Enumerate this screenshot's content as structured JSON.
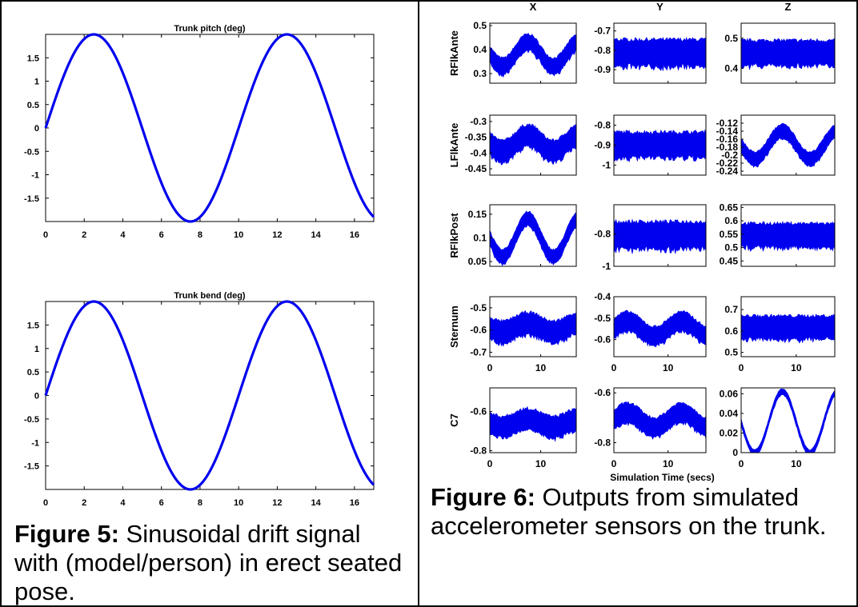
{
  "figure5": {
    "label": "Figure 5:",
    "text": " Sinusoidal drift signal with (model/person) in erect seated pose."
  },
  "figure6": {
    "label": "Figure 6:",
    "text": " Outputs from simulated accelerometer sensors on the trunk."
  },
  "colors": {
    "series": "#0000ee",
    "axis": "#000000"
  },
  "chart_data": [
    {
      "type": "line",
      "title": "Trunk pitch (deg)",
      "xlim": [
        0,
        17
      ],
      "ylim": [
        -2,
        2
      ],
      "xticks": [
        0,
        2,
        4,
        6,
        8,
        10,
        12,
        14,
        16
      ],
      "yticks": [
        -1.5,
        -1,
        -0.5,
        0,
        0.5,
        1,
        1.5
      ],
      "yticklabels": [
        "-1.5",
        "-1",
        "-0.5",
        "0",
        "0.5",
        "1",
        "1.5"
      ],
      "series": [
        {
          "amplitude": 2,
          "period": 10,
          "phase_deg": 0,
          "x_range": [
            0,
            17
          ]
        }
      ]
    },
    {
      "type": "line",
      "title": "Trunk bend (deg)",
      "xlim": [
        0,
        17
      ],
      "ylim": [
        -2,
        2
      ],
      "xticks": [
        0,
        2,
        4,
        6,
        8,
        10,
        12,
        14,
        16
      ],
      "yticks": [
        -1.5,
        -1,
        -0.5,
        0,
        0.5,
        1,
        1.5
      ],
      "yticklabels": [
        "-1.5",
        "-1",
        "-0.5",
        "0",
        "0.5",
        "1",
        "1.5"
      ],
      "series": [
        {
          "amplitude": 2,
          "period": 10,
          "phase_deg": 0,
          "x_range": [
            0,
            17
          ]
        }
      ]
    },
    {
      "type": "line",
      "grid_title_columns": [
        "X",
        "Y",
        "Z"
      ],
      "row_labels": [
        "RFlkAnte",
        "LFlkAnte",
        "RFlkPost",
        "Sternum",
        "C7"
      ],
      "xlabel": "Simulation Time (secs)",
      "xlim": [
        0,
        17
      ],
      "xticks": [
        0,
        10
      ],
      "subplots": [
        {
          "row": 0,
          "col": 0,
          "ylim": [
            0.26,
            0.51
          ],
          "yticks": [
            0.3,
            0.4,
            0.5
          ],
          "yticklabels": [
            "0.3",
            "0.4",
            "0.5"
          ],
          "center": 0.38,
          "amp": 0.05,
          "phase_deg": 180,
          "band": 0.07
        },
        {
          "row": 0,
          "col": 1,
          "ylim": [
            -0.97,
            -0.66
          ],
          "yticks": [
            -0.9,
            -0.8,
            -0.7
          ],
          "yticklabels": [
            "-0.9",
            "-0.8",
            "-0.7"
          ],
          "center": -0.815,
          "amp": 0.0,
          "phase_deg": 0,
          "band": 0.14
        },
        {
          "row": 0,
          "col": 2,
          "ylim": [
            0.35,
            0.55
          ],
          "yticks": [
            0.4,
            0.5
          ],
          "yticklabels": [
            "0.4",
            "0.5"
          ],
          "center": 0.45,
          "amp": 0.0,
          "phase_deg": 0,
          "band": 0.085
        },
        {
          "row": 1,
          "col": 0,
          "ylim": [
            -0.47,
            -0.28
          ],
          "yticks": [
            -0.45,
            -0.4,
            -0.35,
            -0.3
          ],
          "yticklabels": [
            "-0.45",
            "-0.4",
            "-0.35",
            "-0.3"
          ],
          "center": -0.37,
          "amp": 0.025,
          "phase_deg": 180,
          "band": 0.07
        },
        {
          "row": 1,
          "col": 1,
          "ylim": [
            -1.05,
            -0.75
          ],
          "yticks": [
            -1,
            -0.9,
            -0.8
          ],
          "yticklabels": [
            "-1",
            "-0.9",
            "-0.8"
          ],
          "center": -0.9,
          "amp": 0.0,
          "phase_deg": 0,
          "band": 0.13
        },
        {
          "row": 1,
          "col": 2,
          "ylim": [
            -0.25,
            -0.1
          ],
          "yticks": [
            -0.24,
            -0.22,
            -0.2,
            -0.18,
            -0.16,
            -0.14,
            -0.12
          ],
          "yticklabels": [
            "-0.24",
            "-0.22",
            "-0.2",
            "-0.18",
            "-0.16",
            "-0.14",
            "-0.12"
          ],
          "center": -0.175,
          "amp": 0.035,
          "phase_deg": 180,
          "band": 0.035
        },
        {
          "row": 2,
          "col": 0,
          "ylim": [
            0.04,
            0.17
          ],
          "yticks": [
            0.05,
            0.1,
            0.15
          ],
          "yticklabels": [
            "0.05",
            "0.1",
            "0.15"
          ],
          "center": 0.1,
          "amp": 0.04,
          "phase_deg": 180,
          "band": 0.03
        },
        {
          "row": 2,
          "col": 1,
          "ylim": [
            -1.0,
            -0.62
          ],
          "yticks": [
            -1,
            -0.8
          ],
          "yticklabels": [
            "-1",
            "-0.8"
          ],
          "center": -0.81,
          "amp": 0.0,
          "phase_deg": 0,
          "band": 0.17
        },
        {
          "row": 2,
          "col": 2,
          "ylim": [
            0.43,
            0.66
          ],
          "yticks": [
            0.45,
            0.5,
            0.55,
            0.6,
            0.65
          ],
          "yticklabels": [
            "0.45",
            "0.5",
            "0.55",
            "0.6",
            "0.65"
          ],
          "center": 0.545,
          "amp": 0.0,
          "phase_deg": 0,
          "band": 0.09
        },
        {
          "row": 3,
          "col": 0,
          "ylim": [
            -0.72,
            -0.45
          ],
          "yticks": [
            -0.7,
            -0.6,
            -0.5
          ],
          "yticklabels": [
            "-0.7",
            "-0.6",
            "-0.5"
          ],
          "center": -0.59,
          "amp": 0.02,
          "phase_deg": 180,
          "band": 0.1
        },
        {
          "row": 3,
          "col": 1,
          "ylim": [
            -0.68,
            -0.4
          ],
          "yticks": [
            -0.6,
            -0.5,
            -0.4
          ],
          "yticklabels": [
            "-0.6",
            "-0.5",
            "-0.4"
          ],
          "center": -0.55,
          "amp": 0.035,
          "phase_deg": 0,
          "band": 0.09
        },
        {
          "row": 3,
          "col": 2,
          "ylim": [
            0.48,
            0.76
          ],
          "yticks": [
            0.5,
            0.6,
            0.7
          ],
          "yticklabels": [
            "0.5",
            "0.6",
            "0.7"
          ],
          "center": 0.615,
          "amp": 0.0,
          "phase_deg": 0,
          "band": 0.11
        },
        {
          "row": 4,
          "col": 0,
          "ylim": [
            -0.81,
            -0.48
          ],
          "yticks": [
            -0.8,
            -0.6
          ],
          "yticklabels": [
            "-0.8",
            "-0.6"
          ],
          "center": -0.66,
          "amp": 0.02,
          "phase_deg": 180,
          "band": 0.11
        },
        {
          "row": 4,
          "col": 1,
          "ylim": [
            -0.84,
            -0.58
          ],
          "yticks": [
            -0.8,
            -0.6
          ],
          "yticklabels": [
            "-0.8",
            "-0.6"
          ],
          "center": -0.71,
          "amp": 0.03,
          "phase_deg": 0,
          "band": 0.08
        },
        {
          "row": 4,
          "col": 2,
          "ylim": [
            0.0,
            0.066
          ],
          "yticks": [
            0,
            0.02,
            0.04,
            0.06
          ],
          "yticklabels": [
            "0",
            "0.02",
            "0.04",
            "0.06"
          ],
          "center": 0.031,
          "amp": 0.031,
          "phase_deg": 180,
          "band": 0.006
        }
      ]
    }
  ]
}
